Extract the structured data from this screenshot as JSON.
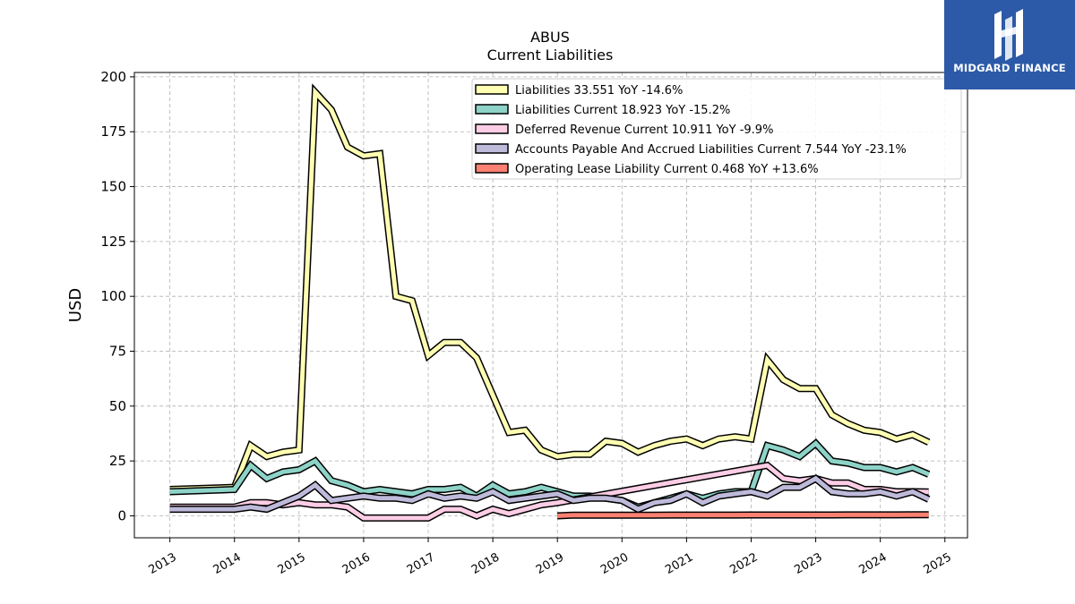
{
  "chart_data": {
    "type": "line",
    "title": "ABUS",
    "subtitle": "Current  Liabilities",
    "ylabel": "USD",
    "ylim": [
      -10,
      202
    ],
    "xlim": [
      2012.45,
      2025.35
    ],
    "yticks": [
      0,
      25,
      50,
      75,
      100,
      125,
      150,
      175,
      200
    ],
    "xticks": [
      "2013",
      "2014",
      "2015",
      "2016",
      "2017",
      "2018",
      "2019",
      "2020",
      "2021",
      "2022",
      "2023",
      "2024",
      "2025"
    ],
    "grid": true,
    "legend_position": "top-right",
    "series": [
      {
        "name": "Liabilities",
        "legend": "Liabilities  33.551 YoY -14.6%",
        "color": "#ffffb3",
        "x": [
          2013.0,
          2014.0,
          2014.25,
          2014.5,
          2014.75,
          2015.0,
          2015.25,
          2015.5,
          2015.75,
          2016.0,
          2016.25,
          2016.5,
          2016.75,
          2017.0,
          2017.25,
          2017.5,
          2017.75,
          2018.0,
          2018.25,
          2018.5,
          2018.75,
          2019.0,
          2019.25,
          2019.5,
          2019.75,
          2020.0,
          2020.25,
          2020.5,
          2020.75,
          2021.0,
          2021.25,
          2021.5,
          2021.75,
          2022.0,
          2022.25,
          2022.5,
          2022.75,
          2023.0,
          2023.25,
          2023.5,
          2023.75,
          2024.0,
          2024.25,
          2024.5,
          2024.75
        ],
        "y": [
          12,
          13,
          32,
          27,
          29,
          30,
          193,
          185,
          168,
          164,
          165,
          100,
          98,
          73,
          79,
          79,
          72,
          55,
          38,
          39,
          30,
          27,
          28,
          28,
          34,
          33,
          29,
          32,
          34,
          35,
          32,
          35,
          36,
          35,
          71,
          62,
          58,
          58,
          46,
          42,
          39,
          38,
          35,
          37,
          33.551
        ]
      },
      {
        "name": "Liabilities Current",
        "legend": "Liabilities Current  18.923 YoY -15.2%",
        "color": "#8dd3c7",
        "x": [
          2013.0,
          2014.0,
          2014.25,
          2014.5,
          2014.75,
          2015.0,
          2015.25,
          2015.5,
          2015.75,
          2016.0,
          2016.25,
          2016.5,
          2016.75,
          2017.0,
          2017.25,
          2017.5,
          2017.75,
          2018.0,
          2018.25,
          2018.5,
          2018.75,
          2019.0,
          2019.25,
          2019.5,
          2019.75,
          2020.0,
          2020.25,
          2020.5,
          2020.75,
          2021.0,
          2021.25,
          2021.5,
          2021.75,
          2022.0,
          2022.25,
          2022.5,
          2022.75,
          2023.0,
          2023.25,
          2023.5,
          2023.75,
          2024.0,
          2024.25,
          2024.5,
          2024.75
        ],
        "y": [
          11,
          12,
          23,
          17,
          20,
          21,
          25,
          16,
          14,
          11,
          12,
          11,
          10,
          12,
          12,
          13,
          9,
          14,
          10,
          11,
          13,
          11,
          9,
          9,
          8,
          7,
          4,
          6,
          8,
          10,
          8,
          10,
          11,
          11,
          32,
          30,
          27,
          33,
          25,
          24,
          22,
          22,
          20,
          22,
          18.923
        ]
      },
      {
        "name": "Deferred Revenue Current",
        "legend": "Deferred Revenue Current  10.911 YoY -9.9%",
        "color": "#fccde5",
        "x": [
          2013.0,
          2014.0,
          2014.25,
          2014.5,
          2014.75,
          2015.0,
          2015.25,
          2015.5,
          2015.75,
          2016.0,
          2016.25,
          2016.5,
          2016.75,
          2017.0,
          2017.25,
          2017.5,
          2017.75,
          2018.0,
          2018.25,
          2018.5,
          2018.75,
          2019.0,
          2022.25,
          2022.5,
          2022.75,
          2023.0,
          2023.25,
          2023.5,
          2023.75,
          2024.0,
          2024.25,
          2024.5,
          2024.75
        ],
        "y": [
          4,
          4,
          6,
          6,
          5,
          6,
          5,
          5,
          4,
          -1,
          -1,
          -1,
          -1,
          -1,
          3,
          3,
          0,
          3,
          1,
          3,
          5,
          6,
          23,
          17,
          16,
          17,
          15,
          15,
          12,
          12,
          11,
          11,
          10.911
        ]
      },
      {
        "name": "Accounts Payable And Accrued Liabilities Current",
        "legend": "Accounts Payable And Accrued Liabilities Current  7.544 YoY -23.1%",
        "color": "#bebada",
        "x": [
          2013.0,
          2014.0,
          2014.25,
          2014.5,
          2014.75,
          2015.0,
          2015.25,
          2015.5,
          2015.75,
          2016.0,
          2016.25,
          2016.5,
          2016.75,
          2017.0,
          2017.25,
          2017.5,
          2017.75,
          2018.0,
          2018.25,
          2018.5,
          2018.75,
          2019.0,
          2019.25,
          2019.5,
          2019.75,
          2020.0,
          2020.25,
          2020.5,
          2020.75,
          2021.0,
          2021.25,
          2021.5,
          2021.75,
          2022.0,
          2022.25,
          2022.5,
          2022.75,
          2023.0,
          2023.25,
          2023.5,
          2023.75,
          2024.0,
          2024.25,
          2024.5,
          2024.75
        ],
        "y": [
          3,
          3,
          4,
          3,
          6,
          9,
          14,
          7,
          8,
          9,
          8,
          8,
          7,
          10,
          8,
          9,
          8,
          11,
          7,
          8,
          9,
          10,
          7,
          8,
          8,
          7,
          3,
          6,
          7,
          10,
          6,
          9,
          10,
          11,
          9,
          13,
          13,
          17,
          11,
          10,
          10,
          11,
          9,
          11,
          7.544
        ]
      },
      {
        "name": "Operating Lease Liability Current",
        "legend": "Operating Lease Liability Current  0.468 YoY +13.6%",
        "color": "#fb8072",
        "x": [
          2019.0,
          2019.25,
          2019.5,
          2019.75,
          2020.0,
          2020.25,
          2020.5,
          2020.75,
          2021.0,
          2021.25,
          2021.5,
          2021.75,
          2022.0,
          2022.25,
          2022.5,
          2022.75,
          2023.0,
          2023.25,
          2023.5,
          2023.75,
          2024.0,
          2024.25,
          2024.5,
          2024.75
        ],
        "y": [
          0,
          0.3,
          0.3,
          0.3,
          0.3,
          0.3,
          0.3,
          0.35,
          0.35,
          0.35,
          0.35,
          0.35,
          0.4,
          0.4,
          0.4,
          0.4,
          0.4,
          0.4,
          0.42,
          0.42,
          0.44,
          0.45,
          0.46,
          0.468
        ]
      }
    ]
  },
  "logo": {
    "text": "MIDGARD FINANCE",
    "background": "#2c5aa8"
  }
}
